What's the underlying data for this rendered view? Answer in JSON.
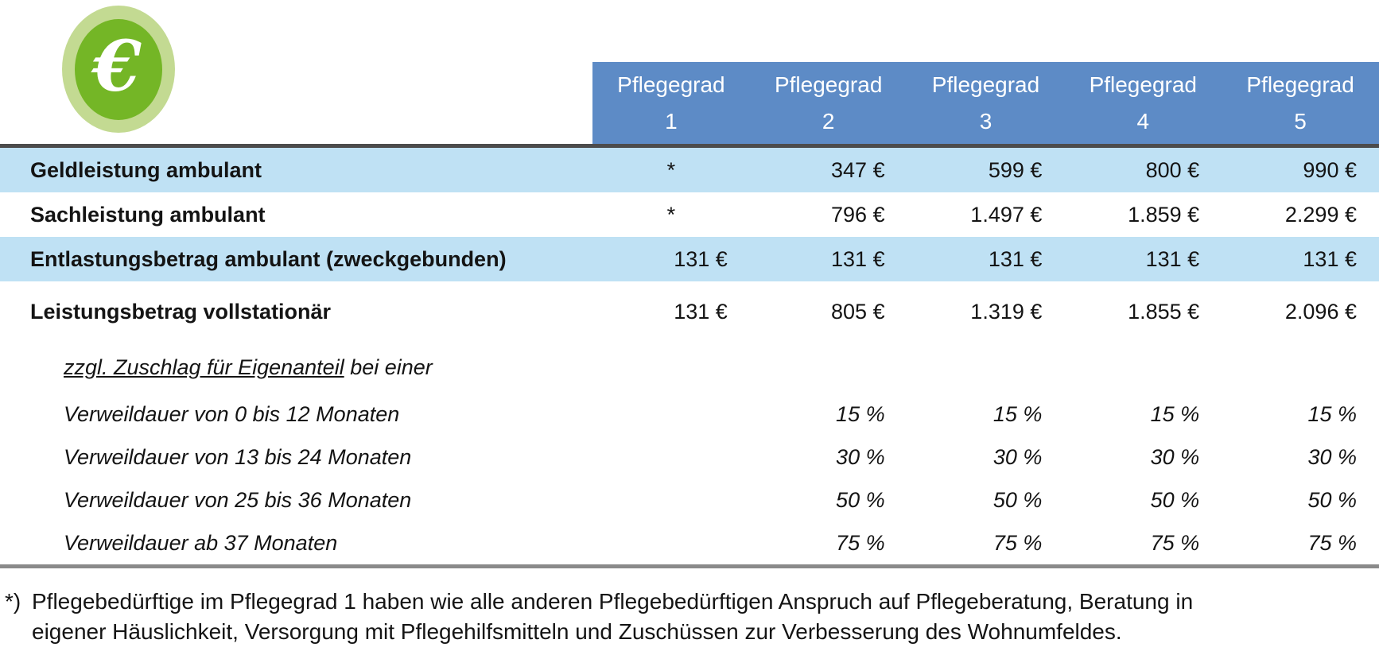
{
  "icon": {
    "symbol": "€"
  },
  "colors": {
    "header_bg": "#5d8bc6",
    "row_highlight": "#bfe1f4",
    "icon_outer": "#c3da92",
    "icon_inner": "#74b626",
    "top_rule": "#4c4c4c",
    "bottom_rule": "#8a8a8a"
  },
  "table": {
    "header": {
      "title": "Pflegegrad",
      "numbers": [
        "1",
        "2",
        "3",
        "4",
        "5"
      ]
    },
    "rows": [
      {
        "label": "Geldleistung ambulant",
        "values": [
          "*",
          "347 €",
          "599 €",
          "800 €",
          "990 €"
        ]
      },
      {
        "label": "Sachleistung ambulant",
        "values": [
          "*",
          "796 €",
          "1.497 €",
          "1.859 €",
          "2.299 €"
        ]
      },
      {
        "label": "Entlastungsbetrag ambulant (zweckgebunden)",
        "values": [
          "131 €",
          "131 €",
          "131 €",
          "131 €",
          "131 €"
        ]
      },
      {
        "label": "Leistungsbetrag vollstationär",
        "values": [
          "131 €",
          "805 €",
          "1.319 €",
          "1.855 €",
          "2.096 €"
        ]
      },
      {
        "label_underline": "zzgl. Zuschlag für Eigenanteil",
        "label_rest": " bei einer",
        "values": [
          "",
          "",
          "",
          "",
          ""
        ]
      },
      {
        "label": "Verweildauer von 0 bis 12 Monaten",
        "values": [
          "",
          "15 %",
          "15 %",
          "15 %",
          "15 %"
        ]
      },
      {
        "label": "Verweildauer von 13 bis 24 Monaten",
        "values": [
          "",
          "30 %",
          "30 %",
          "30 %",
          "30 %"
        ]
      },
      {
        "label": "Verweildauer von 25 bis 36 Monaten",
        "values": [
          "",
          "50 %",
          "50 %",
          "50 %",
          "50 %"
        ]
      },
      {
        "label": "Verweildauer ab 37 Monaten",
        "values": [
          "",
          "75 %",
          "75 %",
          "75 %",
          "75 %"
        ]
      }
    ]
  },
  "footnote": {
    "marker": "*)",
    "text": "Pflegebedürftige im Pflegegrad 1 haben wie alle anderen Pflegebedürftigen Anspruch auf Pflegeberatung, Beratung in eigener Häuslichkeit, Versorgung mit Pflegehilfsmitteln und Zuschüssen zur Verbesserung des Wohnumfeldes."
  }
}
